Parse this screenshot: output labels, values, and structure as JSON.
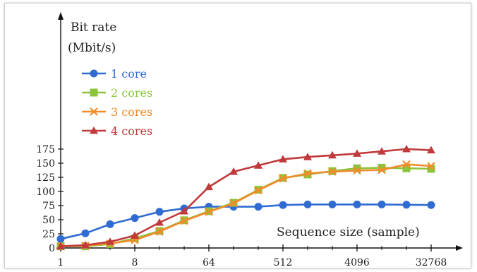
{
  "chart_data": {
    "type": "line",
    "ylabel_line1": "Bit rate",
    "ylabel_line2": "(Mbit/s)",
    "xlabel": "Sequence size (sample)",
    "x_scale": "log2",
    "xlim": [
      1,
      32768
    ],
    "ylim": [
      0,
      180
    ],
    "x_tick_labels": [
      {
        "value": 1,
        "label": "1"
      },
      {
        "value": 8,
        "label": "8"
      },
      {
        "value": 64,
        "label": "64"
      },
      {
        "value": 512,
        "label": "512"
      },
      {
        "value": 4096,
        "label": "4096"
      },
      {
        "value": 32768,
        "label": "32768"
      }
    ],
    "y_ticks": [
      0,
      25,
      50,
      75,
      100,
      125,
      150,
      175
    ],
    "x": [
      1,
      2,
      4,
      8,
      16,
      32,
      64,
      128,
      256,
      512,
      1024,
      2048,
      4096,
      8192,
      16384,
      32768
    ],
    "legend_position": "upper-left",
    "grid": false,
    "series": [
      {
        "name": "1 core",
        "color": "#2f6bd1",
        "marker": "circle",
        "values": [
          16,
          26,
          42,
          53,
          64,
          70,
          73,
          73,
          73,
          76,
          77,
          77,
          77,
          77,
          76.5,
          76
        ]
      },
      {
        "name": "2 cores",
        "color": "#8cc43c",
        "marker": "square",
        "values": [
          3,
          3,
          7,
          17,
          30,
          49,
          65,
          80,
          103,
          124,
          130,
          136,
          141,
          142,
          141,
          140
        ]
      },
      {
        "name": "3 cores",
        "color": "#f28b2a",
        "marker": "x",
        "values": [
          3,
          4,
          8,
          14,
          29,
          48,
          64,
          79,
          102,
          123,
          132,
          135,
          137,
          138,
          148,
          145
        ]
      },
      {
        "name": "4 cores",
        "color": "#c0393b",
        "marker": "triangle",
        "values": [
          3,
          5,
          11,
          22,
          45,
          65,
          108,
          135,
          146,
          157,
          161,
          164,
          167,
          171,
          175,
          173
        ]
      }
    ]
  }
}
